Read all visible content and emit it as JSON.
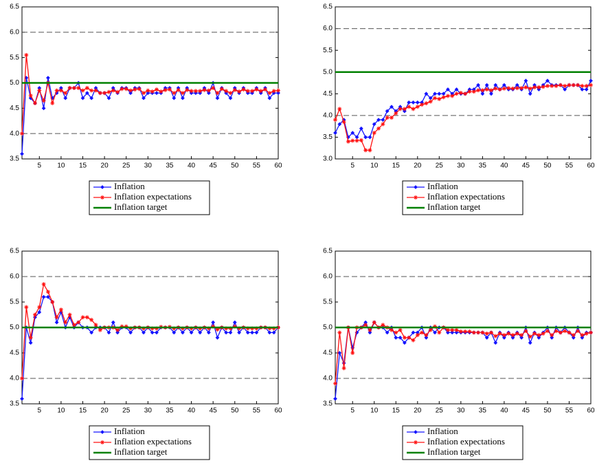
{
  "chart_data": [
    {
      "type": "line",
      "x": [
        1,
        2,
        3,
        4,
        5,
        6,
        7,
        8,
        9,
        10,
        11,
        12,
        13,
        14,
        15,
        16,
        17,
        18,
        19,
        20,
        21,
        22,
        23,
        24,
        25,
        26,
        27,
        28,
        29,
        30,
        31,
        32,
        33,
        34,
        35,
        36,
        37,
        38,
        39,
        40,
        41,
        42,
        43,
        44,
        45,
        46,
        47,
        48,
        49,
        50,
        51,
        52,
        53,
        54,
        55,
        56,
        57,
        58,
        59,
        60
      ],
      "xlim": [
        1,
        60
      ],
      "xticks": [
        5,
        10,
        15,
        20,
        25,
        30,
        35,
        40,
        45,
        50,
        55,
        60
      ],
      "ylim": [
        3.5,
        6.5
      ],
      "yticks": [
        3.5,
        {
          "value": 4,
          "label": "4.0"
        },
        4.5,
        {
          "value": 5,
          "label": "5.0"
        },
        5.5,
        {
          "value": 6,
          "label": "6.0"
        },
        6.5
      ],
      "grid": true,
      "series": [
        {
          "name": "Inflation",
          "color": "#1414ff",
          "marker": "diamond",
          "values": [
            3.6,
            5.1,
            4.7,
            4.6,
            4.9,
            4.5,
            5.1,
            4.7,
            4.8,
            4.9,
            4.7,
            4.9,
            4.9,
            5.0,
            4.7,
            4.8,
            4.7,
            4.9,
            4.8,
            4.8,
            4.7,
            4.9,
            4.8,
            4.9,
            4.9,
            4.8,
            4.9,
            4.9,
            4.7,
            4.8,
            4.8,
            4.8,
            4.8,
            4.9,
            4.9,
            4.7,
            4.9,
            4.7,
            4.9,
            4.8,
            4.8,
            4.8,
            4.9,
            4.8,
            5.0,
            4.7,
            4.9,
            4.8,
            4.7,
            4.9,
            4.8,
            4.9,
            4.8,
            4.8,
            4.9,
            4.8,
            4.9,
            4.7,
            4.8,
            4.8
          ]
        },
        {
          "name": "Inflation expectations",
          "color": "#ff1010",
          "marker": "star",
          "values": [
            4.0,
            5.55,
            4.75,
            4.6,
            4.85,
            4.65,
            5.0,
            4.6,
            4.85,
            4.85,
            4.8,
            4.9,
            4.9,
            4.9,
            4.85,
            4.9,
            4.85,
            4.85,
            4.8,
            4.8,
            4.82,
            4.85,
            4.82,
            4.88,
            4.88,
            4.85,
            4.87,
            4.88,
            4.8,
            4.85,
            4.83,
            4.87,
            4.83,
            4.86,
            4.87,
            4.8,
            4.86,
            4.8,
            4.86,
            4.84,
            4.84,
            4.84,
            4.86,
            4.85,
            4.9,
            4.8,
            4.88,
            4.84,
            4.8,
            4.86,
            4.83,
            4.87,
            4.84,
            4.84,
            4.87,
            4.84,
            4.87,
            4.8,
            4.84,
            4.85
          ]
        },
        {
          "name": "Inflation target",
          "color": "#008000",
          "marker": "none",
          "values": [
            5,
            5,
            5,
            5,
            5,
            5,
            5,
            5,
            5,
            5,
            5,
            5,
            5,
            5,
            5,
            5,
            5,
            5,
            5,
            5,
            5,
            5,
            5,
            5,
            5,
            5,
            5,
            5,
            5,
            5,
            5,
            5,
            5,
            5,
            5,
            5,
            5,
            5,
            5,
            5,
            5,
            5,
            5,
            5,
            5,
            5,
            5,
            5,
            5,
            5,
            5,
            5,
            5,
            5,
            5,
            5,
            5,
            5,
            5,
            5
          ]
        }
      ]
    },
    {
      "type": "line",
      "x": [
        1,
        2,
        3,
        4,
        5,
        6,
        7,
        8,
        9,
        10,
        11,
        12,
        13,
        14,
        15,
        16,
        17,
        18,
        19,
        20,
        21,
        22,
        23,
        24,
        25,
        26,
        27,
        28,
        29,
        30,
        31,
        32,
        33,
        34,
        35,
        36,
        37,
        38,
        39,
        40,
        41,
        42,
        43,
        44,
        45,
        46,
        47,
        48,
        49,
        50,
        51,
        52,
        53,
        54,
        55,
        56,
        57,
        58,
        59,
        60
      ],
      "xlim": [
        1,
        60
      ],
      "xticks": [
        5,
        10,
        15,
        20,
        25,
        30,
        35,
        40,
        45,
        50,
        55,
        60
      ],
      "ylim": [
        3,
        6.5
      ],
      "yticks": [
        {
          "value": 3,
          "label": "3.0"
        },
        3.5,
        {
          "value": 4,
          "label": "4.0"
        },
        4.5,
        {
          "value": 5,
          "label": "5.0"
        },
        5.5,
        {
          "value": 6,
          "label": "6.0"
        },
        6.5
      ],
      "grid": true,
      "series": [
        {
          "name": "Inflation",
          "color": "#1414ff",
          "marker": "diamond",
          "values": [
            3.6,
            3.8,
            3.9,
            3.5,
            3.6,
            3.5,
            3.7,
            3.5,
            3.5,
            3.8,
            3.9,
            3.9,
            4.1,
            4.2,
            4.1,
            4.2,
            4.1,
            4.3,
            4.3,
            4.3,
            4.3,
            4.5,
            4.4,
            4.5,
            4.5,
            4.5,
            4.6,
            4.5,
            4.6,
            4.5,
            4.5,
            4.6,
            4.6,
            4.7,
            4.5,
            4.7,
            4.5,
            4.7,
            4.6,
            4.7,
            4.6,
            4.6,
            4.7,
            4.6,
            4.8,
            4.5,
            4.7,
            4.6,
            4.7,
            4.8,
            4.7,
            4.7,
            4.7,
            4.6,
            4.7,
            4.7,
            4.7,
            4.6,
            4.6,
            4.8
          ]
        },
        {
          "name": "Inflation expectations",
          "color": "#ff1010",
          "marker": "star",
          "values": [
            3.9,
            4.15,
            3.85,
            3.4,
            3.42,
            3.42,
            3.43,
            3.2,
            3.2,
            3.6,
            3.7,
            3.8,
            3.95,
            3.95,
            4.05,
            4.15,
            4.15,
            4.2,
            4.15,
            4.2,
            4.25,
            4.28,
            4.32,
            4.4,
            4.38,
            4.42,
            4.45,
            4.45,
            4.5,
            4.52,
            4.5,
            4.55,
            4.55,
            4.58,
            4.58,
            4.6,
            4.58,
            4.62,
            4.6,
            4.62,
            4.63,
            4.62,
            4.63,
            4.63,
            4.65,
            4.62,
            4.65,
            4.65,
            4.66,
            4.68,
            4.68,
            4.68,
            4.7,
            4.68,
            4.7,
            4.7,
            4.7,
            4.68,
            4.68,
            4.7
          ]
        },
        {
          "name": "Inflation target",
          "color": "#008000",
          "marker": "none",
          "values": [
            5,
            5,
            5,
            5,
            5,
            5,
            5,
            5,
            5,
            5,
            5,
            5,
            5,
            5,
            5,
            5,
            5,
            5,
            5,
            5,
            5,
            5,
            5,
            5,
            5,
            5,
            5,
            5,
            5,
            5,
            5,
            5,
            5,
            5,
            5,
            5,
            5,
            5,
            5,
            5,
            5,
            5,
            5,
            5,
            5,
            5,
            5,
            5,
            5,
            5,
            5,
            5,
            5,
            5,
            5,
            5,
            5,
            5,
            5,
            5
          ]
        }
      ]
    },
    {
      "type": "line",
      "x": [
        1,
        2,
        3,
        4,
        5,
        6,
        7,
        8,
        9,
        10,
        11,
        12,
        13,
        14,
        15,
        16,
        17,
        18,
        19,
        20,
        21,
        22,
        23,
        24,
        25,
        26,
        27,
        28,
        29,
        30,
        31,
        32,
        33,
        34,
        35,
        36,
        37,
        38,
        39,
        40,
        41,
        42,
        43,
        44,
        45,
        46,
        47,
        48,
        49,
        50,
        51,
        52,
        53,
        54,
        55,
        56,
        57,
        58,
        59,
        60
      ],
      "xlim": [
        1,
        60
      ],
      "xticks": [
        5,
        10,
        15,
        20,
        25,
        30,
        35,
        40,
        45,
        50,
        55,
        60
      ],
      "ylim": [
        3.5,
        6.5
      ],
      "yticks": [
        3.5,
        {
          "value": 4,
          "label": "4.0"
        },
        4.5,
        {
          "value": 5,
          "label": "5.0"
        },
        5.5,
        {
          "value": 6,
          "label": "6.0"
        },
        6.5
      ],
      "grid": true,
      "series": [
        {
          "name": "Inflation",
          "color": "#1414ff",
          "marker": "diamond",
          "values": [
            3.6,
            5.0,
            4.7,
            5.2,
            5.3,
            5.6,
            5.6,
            5.5,
            5.1,
            5.3,
            5.0,
            5.2,
            5.0,
            5.1,
            5.0,
            5.0,
            4.9,
            5.0,
            5.0,
            5.0,
            4.9,
            5.1,
            4.9,
            5.0,
            5.0,
            4.9,
            5.0,
            5.0,
            4.9,
            5.0,
            4.9,
            4.9,
            5.0,
            5.0,
            5.0,
            4.9,
            5.0,
            4.9,
            5.0,
            4.9,
            5.0,
            4.9,
            5.0,
            4.9,
            5.1,
            4.8,
            5.0,
            4.9,
            4.9,
            5.1,
            4.9,
            5.0,
            4.9,
            4.9,
            4.9,
            5.0,
            5.0,
            4.9,
            4.9,
            5.0
          ]
        },
        {
          "name": "Inflation expectations",
          "color": "#ff1010",
          "marker": "star",
          "values": [
            4.0,
            5.4,
            4.8,
            5.25,
            5.4,
            5.85,
            5.7,
            5.5,
            5.2,
            5.35,
            5.1,
            5.25,
            5.05,
            5.1,
            5.2,
            5.2,
            5.15,
            5.05,
            4.95,
            5.0,
            5.0,
            5.0,
            4.95,
            5.02,
            5.02,
            4.98,
            5.0,
            5.0,
            4.98,
            5.0,
            4.98,
            4.98,
            5.01,
            5.0,
            5.01,
            4.98,
            5.0,
            4.98,
            5.0,
            4.98,
            5.0,
            4.98,
            5.0,
            4.98,
            5.02,
            4.96,
            5.0,
            4.98,
            4.98,
            5.02,
            4.98,
            5.0,
            4.98,
            4.98,
            4.98,
            5.0,
            5.0,
            4.98,
            4.98,
            5.0
          ]
        },
        {
          "name": "Inflation target",
          "color": "#008000",
          "marker": "none",
          "values": [
            5,
            5,
            5,
            5,
            5,
            5,
            5,
            5,
            5,
            5,
            5,
            5,
            5,
            5,
            5,
            5,
            5,
            5,
            5,
            5,
            5,
            5,
            5,
            5,
            5,
            5,
            5,
            5,
            5,
            5,
            5,
            5,
            5,
            5,
            5,
            5,
            5,
            5,
            5,
            5,
            5,
            5,
            5,
            5,
            5,
            5,
            5,
            5,
            5,
            5,
            5,
            5,
            5,
            5,
            5,
            5,
            5,
            5,
            5,
            5
          ]
        }
      ]
    },
    {
      "type": "line",
      "x": [
        1,
        2,
        3,
        4,
        5,
        6,
        7,
        8,
        9,
        10,
        11,
        12,
        13,
        14,
        15,
        16,
        17,
        18,
        19,
        20,
        21,
        22,
        23,
        24,
        25,
        26,
        27,
        28,
        29,
        30,
        31,
        32,
        33,
        34,
        35,
        36,
        37,
        38,
        39,
        40,
        41,
        42,
        43,
        44,
        45,
        46,
        47,
        48,
        49,
        50,
        51,
        52,
        53,
        54,
        55,
        56,
        57,
        58,
        59,
        60
      ],
      "xlim": [
        1,
        60
      ],
      "xticks": [
        5,
        10,
        15,
        20,
        25,
        30,
        35,
        40,
        45,
        50,
        55,
        60
      ],
      "ylim": [
        3.5,
        6.5
      ],
      "yticks": [
        3.5,
        {
          "value": 4,
          "label": "4.0"
        },
        4.5,
        {
          "value": 5,
          "label": "5.0"
        },
        5.5,
        {
          "value": 6,
          "label": "6.0"
        },
        6.5
      ],
      "grid": true,
      "series": [
        {
          "name": "Inflation",
          "color": "#1414ff",
          "marker": "diamond",
          "values": [
            3.6,
            4.5,
            4.3,
            5.0,
            4.6,
            4.9,
            5.0,
            5.1,
            4.9,
            5.1,
            5.0,
            5.0,
            4.9,
            5.0,
            4.8,
            4.8,
            4.7,
            4.8,
            4.9,
            4.9,
            5.0,
            4.8,
            5.0,
            4.9,
            5.0,
            5.0,
            4.9,
            4.9,
            4.9,
            4.9,
            4.9,
            4.9,
            4.9,
            4.9,
            4.9,
            4.8,
            4.9,
            4.7,
            4.9,
            4.8,
            4.9,
            4.8,
            4.9,
            4.8,
            5.0,
            4.7,
            4.9,
            4.8,
            4.9,
            5.0,
            4.8,
            5.0,
            4.9,
            5.0,
            4.9,
            4.8,
            5.0,
            4.8,
            4.9,
            4.9
          ]
        },
        {
          "name": "Inflation expectations",
          "color": "#ff1010",
          "marker": "star",
          "values": [
            3.9,
            4.9,
            4.2,
            5.0,
            4.5,
            5.0,
            5.0,
            5.05,
            4.95,
            5.1,
            5.0,
            5.05,
            5.0,
            4.95,
            4.9,
            4.95,
            4.8,
            4.8,
            4.75,
            4.85,
            4.9,
            4.85,
            4.95,
            5.02,
            4.9,
            5.0,
            4.95,
            4.95,
            4.95,
            4.92,
            4.92,
            4.92,
            4.9,
            4.9,
            4.9,
            4.88,
            4.9,
            4.83,
            4.88,
            4.85,
            4.88,
            4.85,
            4.88,
            4.85,
            4.93,
            4.82,
            4.88,
            4.85,
            4.88,
            4.93,
            4.85,
            4.93,
            4.9,
            4.93,
            4.9,
            4.85,
            4.93,
            4.85,
            4.88,
            4.9
          ]
        },
        {
          "name": "Inflation target",
          "color": "#008000",
          "marker": "none",
          "values": [
            5,
            5,
            5,
            5,
            5,
            5,
            5,
            5,
            5,
            5,
            5,
            5,
            5,
            5,
            5,
            5,
            5,
            5,
            5,
            5,
            5,
            5,
            5,
            5,
            5,
            5,
            5,
            5,
            5,
            5,
            5,
            5,
            5,
            5,
            5,
            5,
            5,
            5,
            5,
            5,
            5,
            5,
            5,
            5,
            5,
            5,
            5,
            5,
            5,
            5,
            5,
            5,
            5,
            5,
            5,
            5,
            5,
            5,
            5,
            5
          ]
        }
      ]
    }
  ]
}
